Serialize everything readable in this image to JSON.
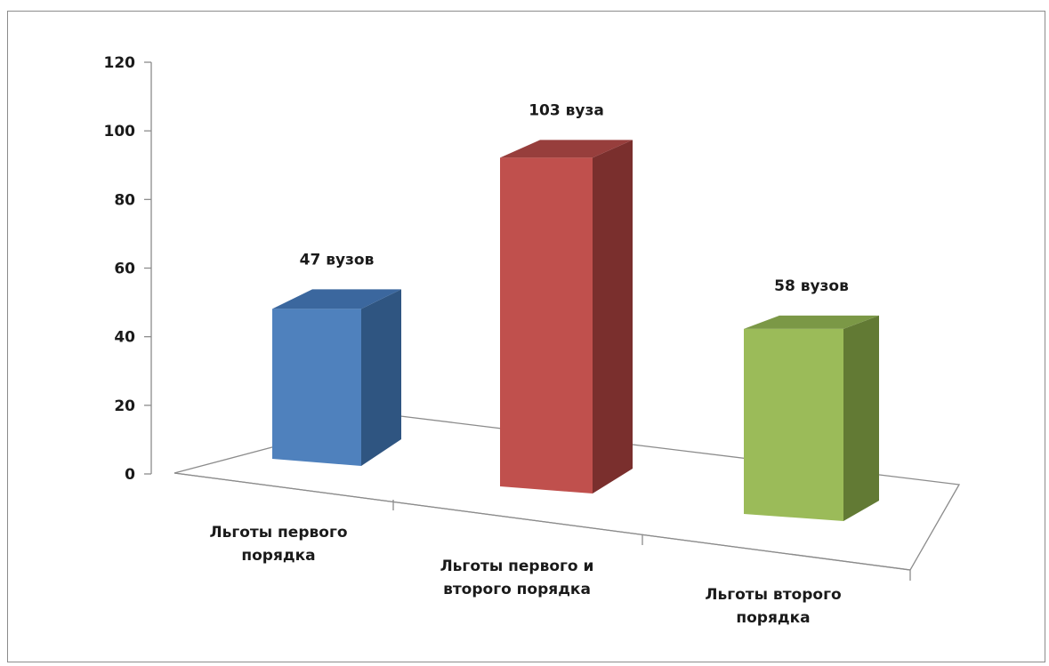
{
  "chart_data": {
    "type": "bar",
    "title": "",
    "xlabel": "",
    "ylabel": "",
    "ylim": [
      0,
      120
    ],
    "yticks": [
      0,
      20,
      40,
      60,
      80,
      100,
      120
    ],
    "grid": false,
    "legend": "none",
    "categories": [
      [
        "Льготы первого",
        "порядка"
      ],
      [
        "Льготы первого и",
        "второго порядка"
      ],
      [
        "Льготы второго",
        "порядка"
      ]
    ],
    "values": [
      47,
      103,
      58
    ],
    "data_labels": [
      "47 вузов",
      "103 вуза",
      "58 вузов"
    ],
    "colors": [
      {
        "front": "#4f81bd",
        "side": "#2f5581",
        "top": "#3b679e"
      },
      {
        "front": "#c0504d",
        "side": "#7a2f2d",
        "top": "#973e3c"
      },
      {
        "front": "#9bbb59",
        "side": "#627a34",
        "top": "#7b9846"
      }
    ]
  }
}
